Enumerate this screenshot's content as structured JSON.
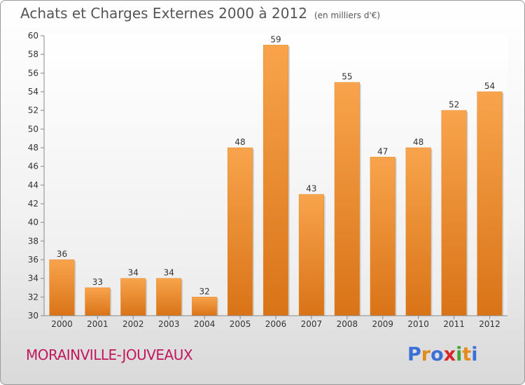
{
  "header": {
    "title": "Achats et Charges Externes 2000 à 2012",
    "unit": "(en milliers d'€)"
  },
  "footer": {
    "commune": "MORAINVILLE-JOUVEAUX",
    "logo": "Proxiti"
  },
  "colors": {
    "bar_top": "#f8a44c",
    "bar_bottom": "#d97317",
    "commune_text": "#c2185b",
    "logo_letters": [
      "#3a6fd8",
      "#e58a1f",
      "#3a6fd8",
      "#d8262a",
      "#3fa535",
      "#e58a1f",
      "#3a6fd8"
    ]
  },
  "chart_data": {
    "type": "bar",
    "title": "Achats et Charges Externes 2000 à 2012",
    "subtitle": "(en milliers d'€)",
    "categories": [
      "2000",
      "2001",
      "2002",
      "2003",
      "2004",
      "2005",
      "2006",
      "2007",
      "2008",
      "2009",
      "2010",
      "2011",
      "2012"
    ],
    "values": [
      36,
      33,
      34,
      34,
      32,
      48,
      59,
      43,
      55,
      47,
      48,
      52,
      54
    ],
    "ylim": [
      30,
      60
    ],
    "yticks": [
      30,
      32,
      34,
      36,
      38,
      40,
      42,
      44,
      46,
      48,
      50,
      52,
      54,
      56,
      58,
      60
    ],
    "grid": false,
    "data_labels": true
  }
}
